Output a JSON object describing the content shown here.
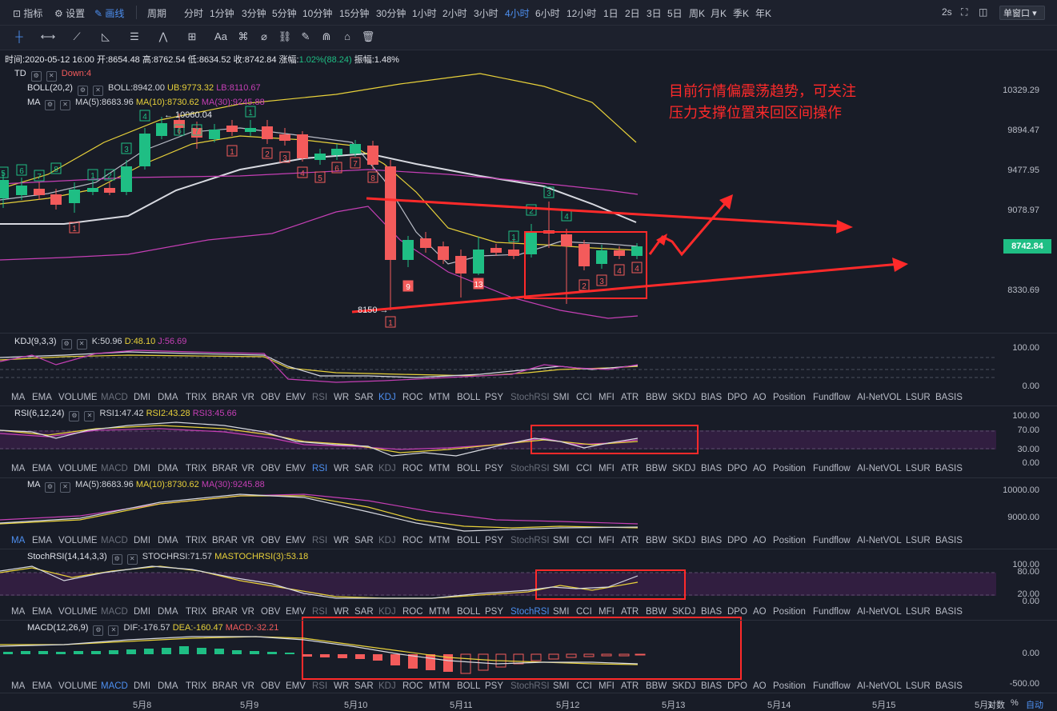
{
  "topbar": {
    "indicators_label": "指标",
    "settings_label": "设置",
    "draw_label": "画线",
    "period_label": "周期",
    "periods": [
      "分时",
      "1分钟",
      "3分钟",
      "5分钟",
      "10分钟",
      "15分钟",
      "30分钟",
      "1小时",
      "2小时",
      "3小时",
      "4小时",
      "6小时",
      "12小时",
      "1日",
      "2日",
      "3日",
      "5日",
      "周K",
      "月K",
      "季K",
      "年K"
    ],
    "active_period": "4小时",
    "refresh": "2s",
    "window_mode": "单窗口"
  },
  "infoline": {
    "time": "时间:2020-05-12 16:00",
    "open": "开:8654.48",
    "high": "高:8762.54",
    "low": "低:8634.52",
    "close": "收:8742.84",
    "change_label": "涨幅:",
    "change_value": "1.02%(88.24)",
    "amplitude": "振幅:1.48%"
  },
  "main": {
    "td_label": "TD",
    "td_value": "Down:4",
    "boll_label": "BOLL(20,2)",
    "boll_value": "BOLL:8942.00",
    "boll_ub": "UB:9773.32",
    "boll_lb": "LB:8110.67",
    "ma_label": "MA",
    "ma5": "MA(5):8683.96",
    "ma10": "MA(10):8730.62",
    "ma30": "MA(30):9245.88",
    "high_marker": "← 10060.04",
    "low_marker": "8150 →",
    "last_price": "8742.84",
    "y_axis": [
      "10329.29",
      "9894.47",
      "9477.95",
      "9078.97",
      "8330.69"
    ],
    "annotation_line1": "目前行情偏震荡趋势，可关注",
    "annotation_line2": "压力支撑位置来回区间操作"
  },
  "td_counts": {
    "green": [
      "5",
      "6",
      "7",
      "8",
      "1",
      "2",
      "3",
      "4",
      "5",
      "6",
      "7",
      "1",
      "1",
      "2",
      "3",
      "4"
    ],
    "red": [
      "1",
      "1",
      "2",
      "3",
      "4",
      "5",
      "6",
      "7",
      "8",
      "1",
      "2",
      "3",
      "4"
    ],
    "bold": [
      "9",
      "13"
    ]
  },
  "indicator_tabs": [
    "MA",
    "EMA",
    "VOLUME",
    "MACD",
    "DMI",
    "DMA",
    "TRIX",
    "BRAR",
    "VR",
    "OBV",
    "EMV",
    "RSI",
    "WR",
    "SAR",
    "KDJ",
    "ROC",
    "MTM",
    "BOLL",
    "PSY",
    "StochRSI",
    "SMI",
    "CCI",
    "MFI",
    "ATR",
    "BBW",
    "SKDJ",
    "BIAS",
    "DPO",
    "AO",
    "Position",
    "Fundflow",
    "AI-NetVOL",
    "LSUR",
    "BASIS"
  ],
  "kdj": {
    "label": "KDJ(9,3,3)",
    "k": "K:50.96",
    "d": "D:48.10",
    "j": "J:56.69",
    "axis": [
      "100.00",
      "0.00"
    ]
  },
  "rsi": {
    "label": "RSI(6,12,24)",
    "r1": "RSI1:47.42",
    "r2": "RSI2:43.28",
    "r3": "RSI3:45.66",
    "axis": [
      "100.00",
      "70.00",
      "30.00",
      "0.00"
    ]
  },
  "ma2": {
    "label": "MA",
    "ma5": "MA(5):8683.96",
    "ma10": "MA(10):8730.62",
    "ma30": "MA(30):9245.88",
    "axis": [
      "10000.00",
      "9000.00"
    ]
  },
  "stochrsi": {
    "label": "StochRSI(14,14,3,3)",
    "v1": "STOCHRSI:71.57",
    "v2": "MASTOCHRSI(3):53.18",
    "axis": [
      "100.00",
      "80.00",
      "20.00",
      "0.00"
    ]
  },
  "macd": {
    "label": "MACD(12,26,9)",
    "dif": "DIF:-176.57",
    "dea": "DEA:-160.47",
    "macd": "MACD:-32.21",
    "axis": [
      "0.00",
      "-500.00"
    ]
  },
  "x_axis": [
    "5月8",
    "5月9",
    "5月10",
    "5月11",
    "5月12",
    "5月13",
    "5月14",
    "5月15",
    "5月1"
  ],
  "footer": {
    "zoom_label": "对数",
    "percent_label": "%",
    "auto_label": "自动"
  },
  "colors": {
    "up": "#1fbe84",
    "down": "#f35b5b",
    "accent": "#4d8ff0",
    "yellow": "#e8d13a",
    "magenta": "#c53fb5",
    "annotation": "#ff2a2a"
  }
}
